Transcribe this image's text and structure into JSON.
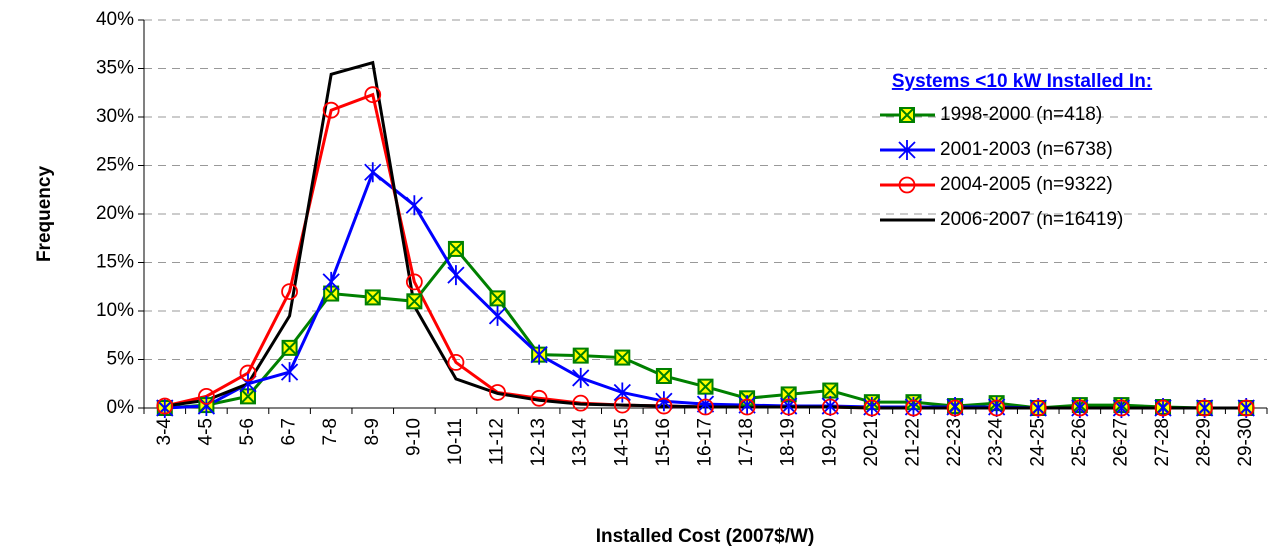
{
  "chart_data": {
    "type": "line",
    "xlabel": "Installed Cost (2007$/W)",
    "ylabel": "Frequency",
    "legend_title": "Systems <10 kW Installed In:",
    "legend": "upper right",
    "grid": true,
    "categories": [
      "3-4",
      "4-5",
      "5-6",
      "6-7",
      "7-8",
      "8-9",
      "9-10",
      "10-11",
      "11-12",
      "12-13",
      "13-14",
      "14-15",
      "15-16",
      "16-17",
      "17-18",
      "18-19",
      "19-20",
      "20-21",
      "21-22",
      "22-23",
      "23-24",
      "24-25",
      "25-26",
      "26-27",
      "27-28",
      "28-29",
      "29-30"
    ],
    "ylim": [
      0,
      40
    ],
    "yticks": [
      {
        "value": 0,
        "label": "0%"
      },
      {
        "value": 5,
        "label": "5%"
      },
      {
        "value": 10,
        "label": "10%"
      },
      {
        "value": 15,
        "label": "15%"
      },
      {
        "value": 20,
        "label": "20%"
      },
      {
        "value": 25,
        "label": "25%"
      },
      {
        "value": 30,
        "label": "30%"
      },
      {
        "value": 35,
        "label": "35%"
      },
      {
        "value": 40,
        "label": "40%"
      }
    ],
    "series": [
      {
        "name": "1998-2000 (n=418)",
        "color": "#008000",
        "marker": "square-x",
        "values": [
          0,
          0.3,
          1.2,
          6.2,
          11.8,
          11.4,
          11.0,
          16.4,
          11.3,
          5.5,
          5.4,
          5.2,
          3.3,
          2.2,
          1.0,
          1.4,
          1.8,
          0.6,
          0.6,
          0.2,
          0.5,
          0,
          0.3,
          0.3,
          0.1,
          0,
          0
        ]
      },
      {
        "name": "2001-2003 (n=6738)",
        "color": "#0000ff",
        "marker": "asterisk",
        "values": [
          0,
          0.2,
          2.5,
          3.7,
          13.0,
          24.3,
          20.9,
          13.7,
          9.5,
          5.5,
          3.1,
          1.6,
          0.7,
          0.4,
          0.3,
          0.2,
          0.2,
          0.1,
          0.1,
          0.1,
          0.1,
          0,
          0,
          0,
          0,
          0,
          0
        ]
      },
      {
        "name": "2004-2005 (n=9322)",
        "color": "#ff0000",
        "marker": "circle",
        "values": [
          0.2,
          1.2,
          3.6,
          12.0,
          30.7,
          32.3,
          13.0,
          4.7,
          1.6,
          1.0,
          0.5,
          0.3,
          0.2,
          0.1,
          0.1,
          0.1,
          0.1,
          0,
          0,
          0,
          0,
          0,
          0,
          0,
          0,
          0,
          0
        ]
      },
      {
        "name": "2006-2007 (n=16419)",
        "color": "#000000",
        "marker": "none",
        "values": [
          0.2,
          0.8,
          2.5,
          9.5,
          34.4,
          35.6,
          10.5,
          3.0,
          1.5,
          0.8,
          0.4,
          0.3,
          0.2,
          0.1,
          0.1,
          0.1,
          0.1,
          0,
          0,
          0,
          0,
          0,
          0,
          0,
          0,
          0,
          0
        ]
      }
    ]
  }
}
